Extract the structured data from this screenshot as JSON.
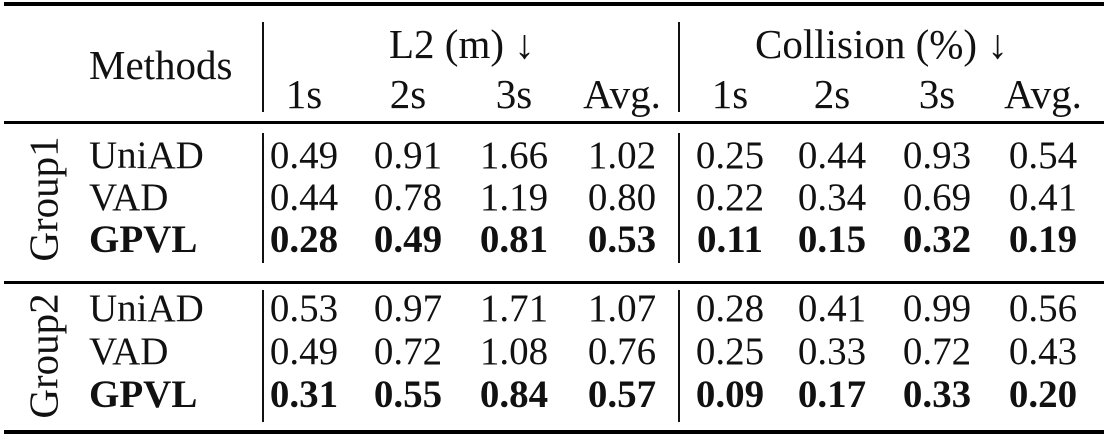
{
  "header": {
    "methods": "Methods",
    "l2": "L2 (m) ↓",
    "collision": "Collision (%) ↓",
    "subcols": [
      "1s",
      "2s",
      "3s",
      "Avg.",
      "1s",
      "2s",
      "3s",
      "Avg."
    ]
  },
  "groups": [
    {
      "label": "Group1",
      "rows": [
        {
          "method": "UniAD",
          "bold": false,
          "values": [
            "0.49",
            "0.91",
            "1.66",
            "1.02",
            "0.25",
            "0.44",
            "0.93",
            "0.54"
          ]
        },
        {
          "method": "VAD",
          "bold": false,
          "values": [
            "0.44",
            "0.78",
            "1.19",
            "0.80",
            "0.22",
            "0.34",
            "0.69",
            "0.41"
          ]
        },
        {
          "method": "GPVL",
          "bold": true,
          "values": [
            "0.28",
            "0.49",
            "0.81",
            "0.53",
            "0.11",
            "0.15",
            "0.32",
            "0.19"
          ]
        }
      ]
    },
    {
      "label": "Group2",
      "rows": [
        {
          "method": "UniAD",
          "bold": false,
          "values": [
            "0.53",
            "0.97",
            "1.71",
            "1.07",
            "0.28",
            "0.41",
            "0.99",
            "0.56"
          ]
        },
        {
          "method": "VAD",
          "bold": false,
          "values": [
            "0.49",
            "0.72",
            "1.08",
            "0.76",
            "0.25",
            "0.33",
            "0.72",
            "0.43"
          ]
        },
        {
          "method": "GPVL",
          "bold": true,
          "values": [
            "0.31",
            "0.55",
            "0.84",
            "0.57",
            "0.09",
            "0.17",
            "0.33",
            "0.20"
          ]
        }
      ]
    }
  ]
}
